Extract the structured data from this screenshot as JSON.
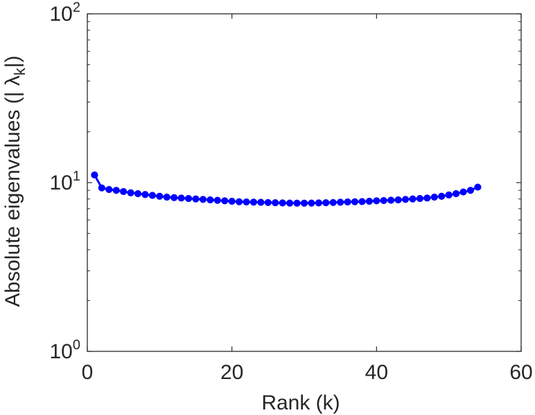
{
  "chart_data": {
    "type": "line",
    "title": "",
    "xlabel": "Rank (k)",
    "ylabel": "Absolute eigenvalues (|",
    "ylabel_symbol": "λ",
    "ylabel_subscript": "k",
    "ylabel_close": "|)",
    "xlim": [
      0,
      60
    ],
    "ylim": [
      1,
      100
    ],
    "yscale": "log",
    "grid": false,
    "xticks": [
      0,
      20,
      40,
      60
    ],
    "xtick_labels": [
      "0",
      "20",
      "40",
      "60"
    ],
    "yticks": [
      1,
      10,
      100
    ],
    "ytick_labels": [
      {
        "base": "10",
        "exp": "0"
      },
      {
        "base": "10",
        "exp": "1"
      },
      {
        "base": "10",
        "exp": "2"
      }
    ],
    "series": [
      {
        "color": "#0000ff",
        "marker": "circle",
        "x": [
          1,
          2,
          3,
          4,
          5,
          6,
          7,
          8,
          9,
          10,
          11,
          12,
          13,
          14,
          15,
          16,
          17,
          18,
          19,
          20,
          21,
          22,
          23,
          24,
          25,
          26,
          27,
          28,
          29,
          30,
          31,
          32,
          33,
          34,
          35,
          36,
          37,
          38,
          39,
          40,
          41,
          42,
          43,
          44,
          45,
          46,
          47,
          48,
          49,
          50,
          51,
          52,
          53,
          54
        ],
        "y": [
          11.1,
          9.3,
          9.1,
          9.0,
          8.85,
          8.7,
          8.6,
          8.5,
          8.4,
          8.3,
          8.2,
          8.15,
          8.1,
          8.05,
          8.0,
          7.95,
          7.9,
          7.85,
          7.8,
          7.75,
          7.7,
          7.68,
          7.66,
          7.64,
          7.62,
          7.6,
          7.58,
          7.56,
          7.55,
          7.55,
          7.56,
          7.58,
          7.6,
          7.62,
          7.65,
          7.68,
          7.7,
          7.72,
          7.75,
          7.8,
          7.83,
          7.86,
          7.9,
          7.95,
          8.0,
          8.05,
          8.1,
          8.2,
          8.3,
          8.45,
          8.6,
          8.8,
          9.0,
          9.4
        ]
      }
    ]
  }
}
